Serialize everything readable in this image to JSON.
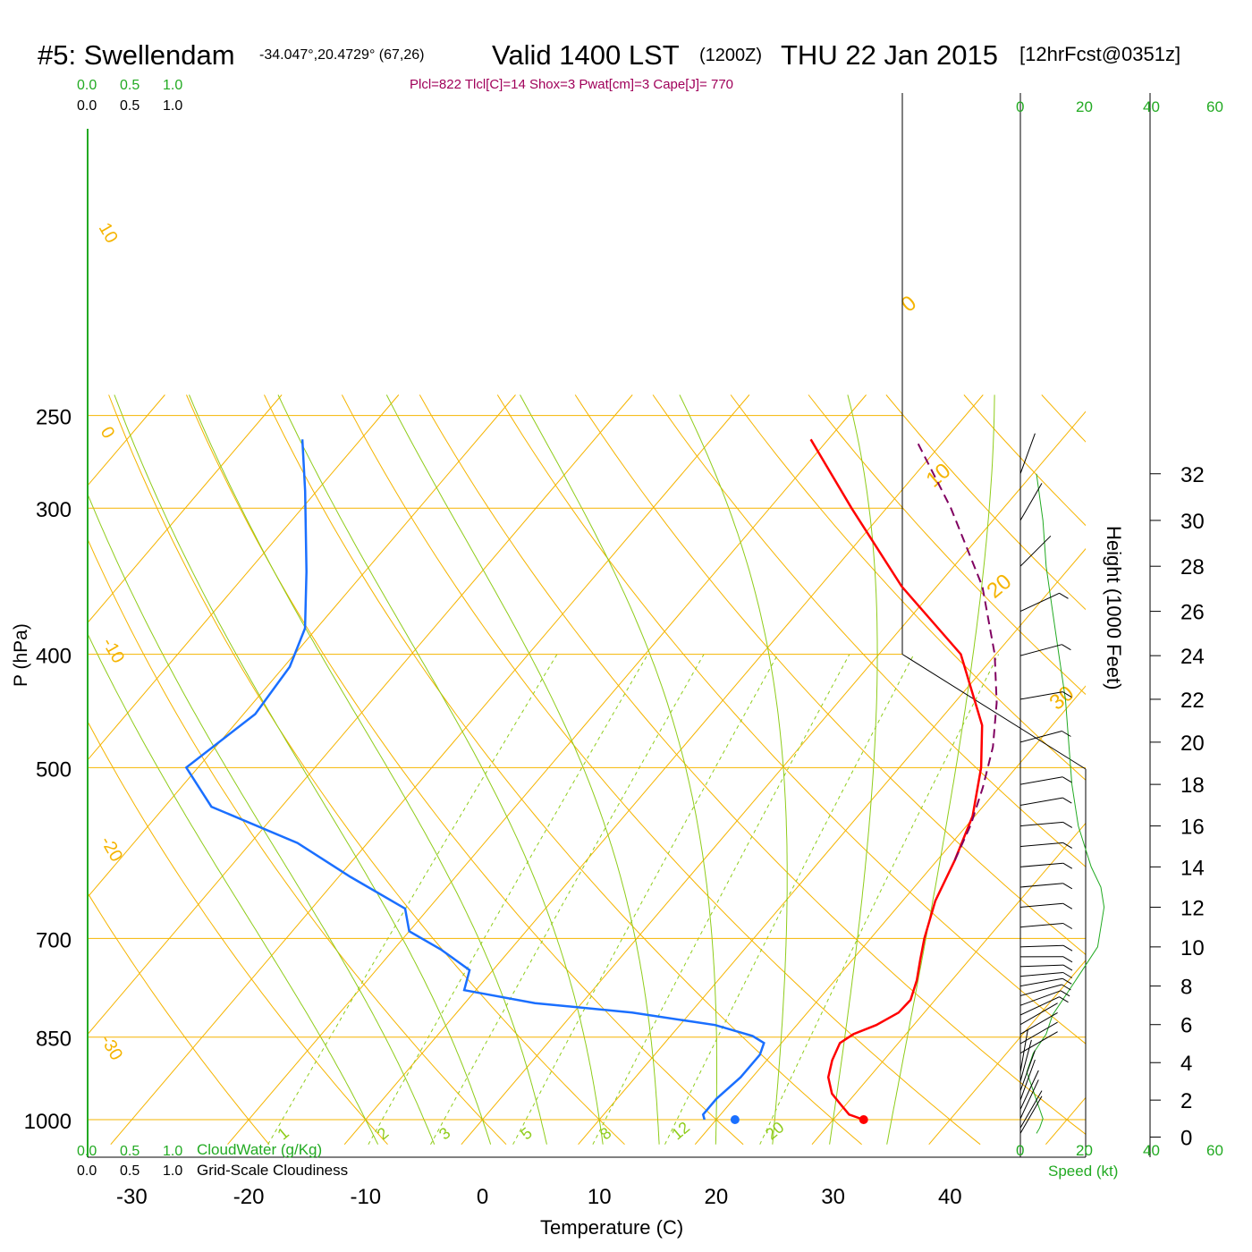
{
  "header": {
    "station": "#5: Swellendam",
    "coords": "-34.047°,20.4729° (67,26)",
    "valid_label": "Valid 1400 LST",
    "zulu": "(1200Z)",
    "date": "THU 22 Jan 2015",
    "forecast": "[12hrFcst@0351z]",
    "indices": "Plcl=822 Tlcl[C]=14 Shox=3 Pwat[cm]=3 Cape[J]= 770"
  },
  "colors": {
    "isobar": "#f5b400",
    "isotherm": "#f5b400",
    "dry_adiabat": "#f5b400",
    "moist_adiabat": "#8fcc1a",
    "mixing_ratio": "#8fcc1a",
    "temperature": "#ff0000",
    "dewpoint": "#1a6fff",
    "parcel": "#800060",
    "indices": "#a0005a",
    "green_label": "#22aa22",
    "speed_line": "#22aa22",
    "frame": "#000000"
  },
  "chart_data": {
    "type": "line",
    "diagram": "skew-T log-p",
    "xlabel": "Temperature (C)",
    "ylabel": "P (hPa)",
    "right_label": "Height (1000 Feet)",
    "xlim": [
      -30,
      40
    ],
    "x_ticks": [
      -30,
      -20,
      -10,
      0,
      10,
      20,
      30,
      40
    ],
    "pressure_ticks": [
      250,
      300,
      400,
      500,
      700,
      850,
      1000
    ],
    "height_ticks": [
      0,
      2,
      4,
      6,
      8,
      10,
      12,
      14,
      16,
      18,
      20,
      22,
      24,
      26,
      28,
      30,
      32
    ],
    "isotherm_labels": [
      {
        "t": 10,
        "label": "10"
      },
      {
        "t": 0,
        "label": "0"
      },
      {
        "t": -10,
        "label": "-10"
      },
      {
        "t": -20,
        "label": "-20"
      },
      {
        "t": -30,
        "label": "-30"
      },
      {
        "t": 0,
        "label": "0"
      },
      {
        "t": 10,
        "label": "10"
      },
      {
        "t": 20,
        "label": "20"
      },
      {
        "t": 30,
        "label": "30"
      }
    ],
    "mixing_ratio_labels": [
      "1",
      "2",
      "3",
      "5",
      "8",
      "12",
      "20"
    ],
    "mixing_ratio_values": [
      1,
      2,
      3,
      5,
      8,
      12,
      20
    ],
    "dry_adiabats_thetaC": [
      -20,
      -10,
      0,
      10,
      20,
      30,
      40,
      50,
      60,
      70,
      80,
      90,
      100,
      110,
      120,
      130,
      140
    ],
    "moist_adiabats_tC": [
      -10,
      -5,
      0,
      5,
      10,
      15,
      20,
      25,
      30,
      35
    ],
    "cloud_axis_top": {
      "labels": [
        "0.0",
        "0.5",
        "1.0"
      ]
    },
    "cloud_axis_top2": {
      "labels": [
        "0.0",
        "0.5",
        "1.0"
      ]
    },
    "cloud_axis_bottom": {
      "labels": [
        "0.0",
        "0.5",
        "1.0"
      ],
      "title": "CloudWater (g/Kg)"
    },
    "cloud_axis_bottom2": {
      "labels": [
        "0.0",
        "0.5",
        "1.0"
      ],
      "title": "Grid-Scale Cloudiness"
    },
    "speed_axis_top": [
      "0",
      "20",
      "40",
      "60"
    ],
    "speed_axis_bottom": [
      "0",
      "20",
      "40",
      "60"
    ],
    "speed_label": "Speed (kt)",
    "series": [
      {
        "name": "",
        "key": "temperature",
        "points": [
          [
            1000,
            32.6
          ],
          [
            990,
            31.0
          ],
          [
            970,
            29.5
          ],
          [
            950,
            28.0
          ],
          [
            920,
            26.5
          ],
          [
            890,
            25.6
          ],
          [
            860,
            25.0
          ],
          [
            845,
            25.5
          ],
          [
            830,
            26.8
          ],
          [
            810,
            27.8
          ],
          [
            790,
            27.9
          ],
          [
            760,
            27.0
          ],
          [
            730,
            25.8
          ],
          [
            700,
            24.6
          ],
          [
            650,
            22.8
          ],
          [
            600,
            21.5
          ],
          [
            550,
            19.8
          ],
          [
            500,
            17.0
          ],
          [
            460,
            14.0
          ],
          [
            400,
            7.0
          ],
          [
            350,
            -3.0
          ],
          [
            300,
            -13.0
          ],
          [
            262,
            -21.5
          ]
        ]
      },
      {
        "name": "",
        "key": "dewpoint",
        "points": [
          [
            1000,
            19.0
          ],
          [
            990,
            18.5
          ],
          [
            960,
            18.5
          ],
          [
            920,
            19.0
          ],
          [
            880,
            19.0
          ],
          [
            860,
            18.5
          ],
          [
            848,
            17.0
          ],
          [
            830,
            13.0
          ],
          [
            810,
            5.0
          ],
          [
            795,
            -4.0
          ],
          [
            775,
            -11.0
          ],
          [
            745,
            -12.0
          ],
          [
            715,
            -16.0
          ],
          [
            690,
            -20.0
          ],
          [
            660,
            -22.0
          ],
          [
            620,
            -29.0
          ],
          [
            580,
            -36.0
          ],
          [
            540,
            -46.0
          ],
          [
            500,
            -51.0
          ],
          [
            450,
            -49.0
          ],
          [
            410,
            -49.5
          ],
          [
            380,
            -51.0
          ],
          [
            340,
            -55.0
          ],
          [
            290,
            -61.0
          ],
          [
            262,
            -65.0
          ]
        ]
      },
      {
        "name": "",
        "key": "parcel",
        "points": [
          [
            600,
            21.5
          ],
          [
            560,
            20.3
          ],
          [
            520,
            18.6
          ],
          [
            480,
            16.5
          ],
          [
            440,
            13.6
          ],
          [
            400,
            9.9
          ],
          [
            350,
            3.9
          ],
          [
            300,
            -4.5
          ],
          [
            262,
            -12.5
          ]
        ]
      }
    ],
    "surface_points": {
      "temperature_c": 33.3,
      "dewpoint_c": 21.3,
      "pressure": 1000
    },
    "wind_profile": [
      {
        "h_kft": 0.2,
        "speed_kt": 5,
        "dir": 330
      },
      {
        "h_kft": 0.5,
        "speed_kt": 6,
        "dir": 330
      },
      {
        "h_kft": 1.0,
        "speed_kt": 7,
        "dir": 335
      },
      {
        "h_kft": 1.5,
        "speed_kt": 6,
        "dir": 335
      },
      {
        "h_kft": 2.0,
        "speed_kt": 5,
        "dir": 340
      },
      {
        "h_kft": 2.5,
        "speed_kt": 4,
        "dir": 340
      },
      {
        "h_kft": 3.0,
        "speed_kt": 3,
        "dir": 345
      },
      {
        "h_kft": 3.5,
        "speed_kt": 2,
        "dir": 350
      },
      {
        "h_kft": 4.5,
        "speed_kt": 4,
        "dir": 300
      },
      {
        "h_kft": 5.0,
        "speed_kt": 6,
        "dir": 300
      },
      {
        "h_kft": 5.5,
        "speed_kt": 8,
        "dir": 300
      },
      {
        "h_kft": 6.0,
        "speed_kt": 9,
        "dir": 300
      },
      {
        "h_kft": 6.5,
        "speed_kt": 10,
        "dir": 295
      },
      {
        "h_kft": 7.0,
        "speed_kt": 12,
        "dir": 290
      },
      {
        "h_kft": 7.5,
        "speed_kt": 14,
        "dir": 285
      },
      {
        "h_kft": 8.0,
        "speed_kt": 16,
        "dir": 280
      },
      {
        "h_kft": 8.5,
        "speed_kt": 18,
        "dir": 275
      },
      {
        "h_kft": 9.0,
        "speed_kt": 20,
        "dir": 272
      },
      {
        "h_kft": 9.5,
        "speed_kt": 22,
        "dir": 270
      },
      {
        "h_kft": 10.0,
        "speed_kt": 24,
        "dir": 272
      },
      {
        "h_kft": 11.0,
        "speed_kt": 25,
        "dir": 275
      },
      {
        "h_kft": 12.0,
        "speed_kt": 26,
        "dir": 275
      },
      {
        "h_kft": 13.0,
        "speed_kt": 25,
        "dir": 275
      },
      {
        "h_kft": 14.0,
        "speed_kt": 22,
        "dir": 275
      },
      {
        "h_kft": 15.0,
        "speed_kt": 20,
        "dir": 275
      },
      {
        "h_kft": 16.0,
        "speed_kt": 18,
        "dir": 275
      },
      {
        "h_kft": 17.0,
        "speed_kt": 17,
        "dir": 280
      },
      {
        "h_kft": 18.0,
        "speed_kt": 16,
        "dir": 280
      },
      {
        "h_kft": 20.0,
        "speed_kt": 15,
        "dir": 285
      },
      {
        "h_kft": 22.0,
        "speed_kt": 14,
        "dir": 280
      },
      {
        "h_kft": 24.0,
        "speed_kt": 12,
        "dir": 285
      },
      {
        "h_kft": 26.0,
        "speed_kt": 10,
        "dir": 295
      },
      {
        "h_kft": 28.0,
        "speed_kt": 8,
        "dir": 315
      },
      {
        "h_kft": 30.0,
        "speed_kt": 7,
        "dir": 330
      },
      {
        "h_kft": 32.0,
        "speed_kt": 5,
        "dir": 340
      }
    ]
  }
}
